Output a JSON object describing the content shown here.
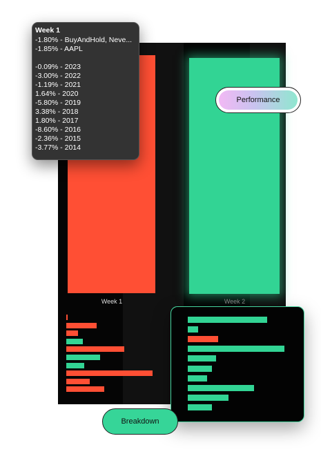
{
  "tooltip": {
    "title": "Week 1",
    "lines": [
      "-1.80% - BuyAndHold, Neve...",
      "-1.85% - AAPL",
      "",
      "-0.09% - 2023",
      "-3.00% - 2022",
      "-1.19% - 2021",
      "1.64% - 2020",
      "-5.80% - 2019",
      "3.38% - 2018",
      "1.80% - 2017",
      "-8.60% - 2016",
      "-2.36% - 2015",
      "-3.77% - 2014"
    ]
  },
  "chart": {
    "week1_label": "Week 1",
    "week2_label": "Week 2"
  },
  "buttons": {
    "performance": "Performance",
    "breakdown": "Breakdown"
  },
  "colors": {
    "negative": "#ff4f34",
    "positive": "#32d494",
    "background": "#050505"
  },
  "chart_data": {
    "type": "bar",
    "categories": [
      "Week 1",
      "Week 2"
    ],
    "main_bars": [
      {
        "category": "Week 1",
        "sign": "negative"
      },
      {
        "category": "Week 2",
        "sign": "positive"
      }
    ],
    "breakdown_week1": [
      {
        "label": "2023",
        "value": -0.09
      },
      {
        "label": "2022",
        "value": -3.0
      },
      {
        "label": "2021",
        "value": -1.19
      },
      {
        "label": "2020",
        "value": 1.64
      },
      {
        "label": "2019",
        "value": -5.8
      },
      {
        "label": "2018",
        "value": 3.38
      },
      {
        "label": "2017",
        "value": 1.8
      },
      {
        "label": "2016",
        "value": -8.6
      },
      {
        "label": "2015",
        "value": -2.36
      },
      {
        "label": "2014",
        "value": -3.77
      }
    ],
    "breakdown_week2_magnitudes": [
      7.8,
      1.0,
      3.0,
      9.5,
      2.8,
      2.4,
      1.9,
      6.5,
      4.0,
      2.4
    ],
    "breakdown_week2_signs": [
      "positive",
      "positive",
      "negative",
      "positive",
      "positive",
      "positive",
      "positive",
      "positive",
      "positive",
      "positive"
    ]
  }
}
